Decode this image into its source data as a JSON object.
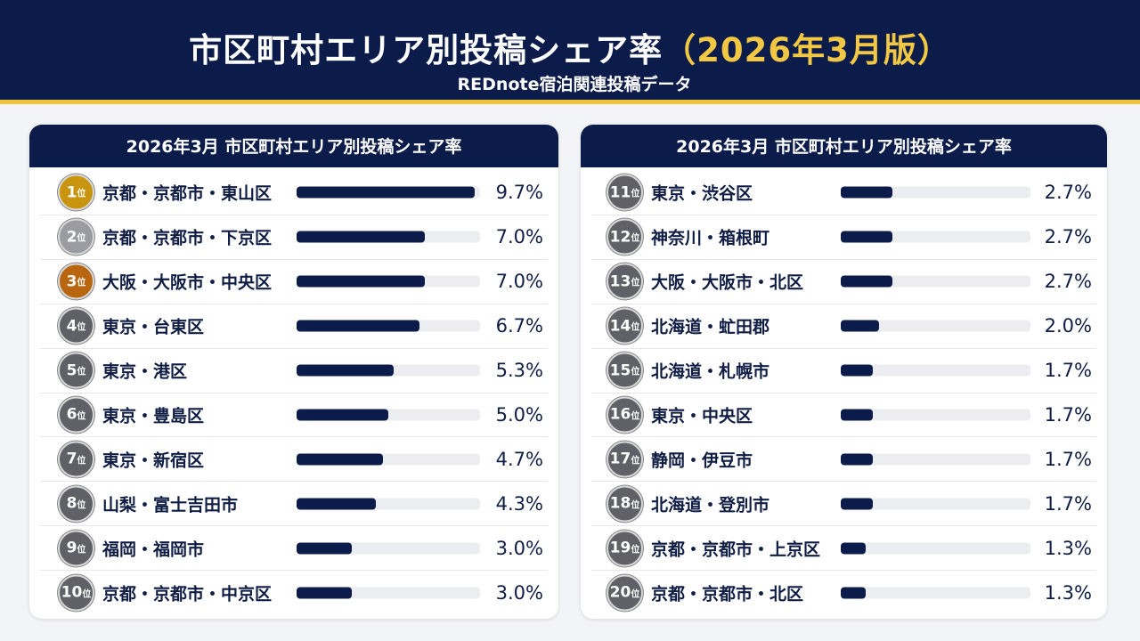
{
  "header": {
    "title_main": "市区町村エリア別投稿シェア率",
    "title_highlight": "（2026年3月版）",
    "subtitle": "REDnote宿泊関連投稿データ"
  },
  "colors": {
    "navy": "#0c1c4a",
    "gold": "#f0c53c",
    "rank1": "#c9950f",
    "rank2": "#9a9ca1",
    "rank3": "#b8660f",
    "rank_other": "#5f6166"
  },
  "chart_data": [
    {
      "type": "bar",
      "title": "2026年3月 市区町村エリア別投稿シェア率",
      "unit": "%",
      "xlim": [
        0,
        10
      ],
      "rows": [
        {
          "rank": "1",
          "suffix": "位",
          "label": "京都・京都市・東山区",
          "value": 9.7,
          "display": "9.7%"
        },
        {
          "rank": "2",
          "suffix": "位",
          "label": "京都・京都市・下京区",
          "value": 7.0,
          "display": "7.0%"
        },
        {
          "rank": "3",
          "suffix": "位",
          "label": "大阪・大阪市・中央区",
          "value": 7.0,
          "display": "7.0%"
        },
        {
          "rank": "4",
          "suffix": "位",
          "label": "東京・台東区",
          "value": 6.7,
          "display": "6.7%"
        },
        {
          "rank": "5",
          "suffix": "位",
          "label": "東京・港区",
          "value": 5.3,
          "display": "5.3%"
        },
        {
          "rank": "6",
          "suffix": "位",
          "label": "東京・豊島区",
          "value": 5.0,
          "display": "5.0%"
        },
        {
          "rank": "7",
          "suffix": "位",
          "label": "東京・新宿区",
          "value": 4.7,
          "display": "4.7%"
        },
        {
          "rank": "8",
          "suffix": "位",
          "label": "山梨・富士吉田市",
          "value": 4.3,
          "display": "4.3%"
        },
        {
          "rank": "9",
          "suffix": "位",
          "label": "福岡・福岡市",
          "value": 3.0,
          "display": "3.0%"
        },
        {
          "rank": "10",
          "suffix": "位",
          "label": "京都・京都市・中京区",
          "value": 3.0,
          "display": "3.0%"
        }
      ]
    },
    {
      "type": "bar",
      "title": "2026年3月 市区町村エリア別投稿シェア率",
      "unit": "%",
      "xlim": [
        0,
        10
      ],
      "rows": [
        {
          "rank": "11",
          "suffix": "位",
          "label": "東京・渋谷区",
          "value": 2.7,
          "display": "2.7%"
        },
        {
          "rank": "12",
          "suffix": "位",
          "label": "神奈川・箱根町",
          "value": 2.7,
          "display": "2.7%"
        },
        {
          "rank": "13",
          "suffix": "位",
          "label": "大阪・大阪市・北区",
          "value": 2.7,
          "display": "2.7%"
        },
        {
          "rank": "14",
          "suffix": "位",
          "label": "北海道・虻田郡",
          "value": 2.0,
          "display": "2.0%"
        },
        {
          "rank": "15",
          "suffix": "位",
          "label": "北海道・札幌市",
          "value": 1.7,
          "display": "1.7%"
        },
        {
          "rank": "16",
          "suffix": "位",
          "label": "東京・中央区",
          "value": 1.7,
          "display": "1.7%"
        },
        {
          "rank": "17",
          "suffix": "位",
          "label": "静岡・伊豆市",
          "value": 1.7,
          "display": "1.7%"
        },
        {
          "rank": "18",
          "suffix": "位",
          "label": "北海道・登別市",
          "value": 1.7,
          "display": "1.7%"
        },
        {
          "rank": "19",
          "suffix": "位",
          "label": "京都・京都市・上京区",
          "value": 1.3,
          "display": "1.3%"
        },
        {
          "rank": "20",
          "suffix": "位",
          "label": "京都・京都市・北区",
          "value": 1.3,
          "display": "1.3%"
        }
      ]
    }
  ]
}
